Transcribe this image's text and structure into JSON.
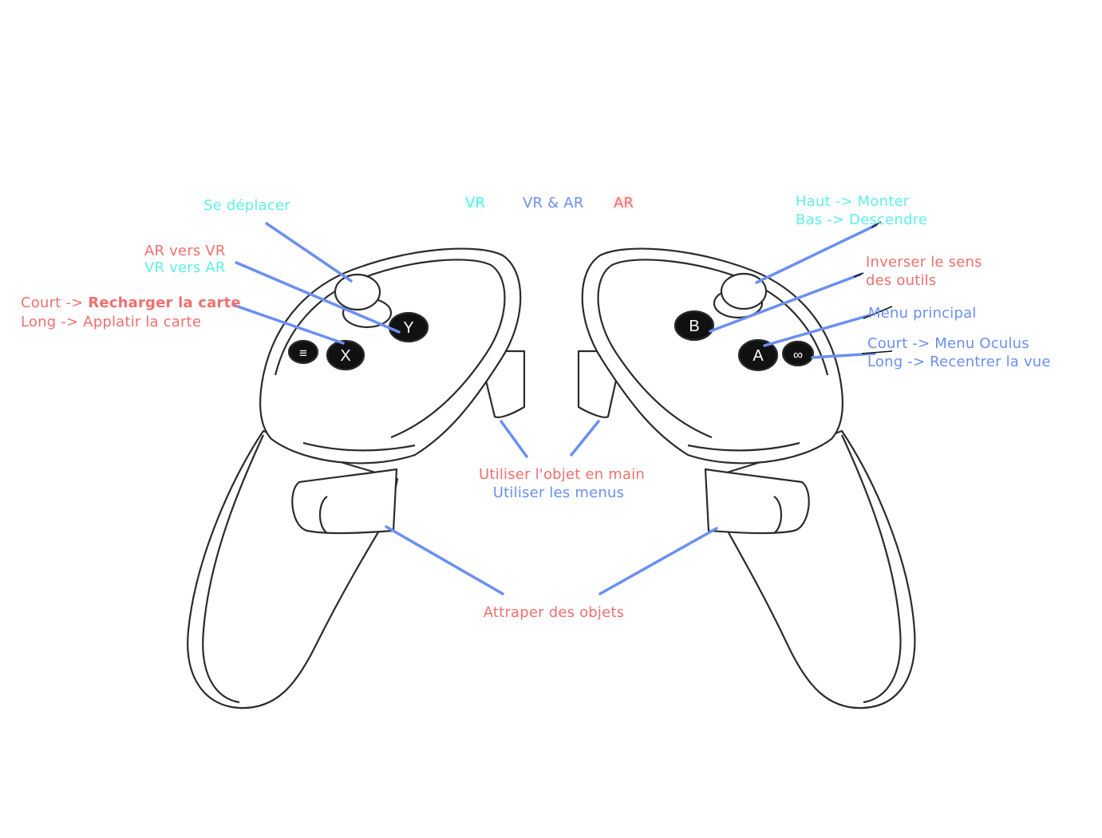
{
  "legend": {
    "vr": "VR",
    "vr_ar": "VR & AR",
    "ar": "AR",
    "colors": {
      "vr": "#5ff0e8",
      "vr_ar": "#6b8ff2",
      "ar": "#ef6f6f"
    }
  },
  "left_controller": {
    "thumbstick": "Se déplacer",
    "y_button_line1": "AR vers VR",
    "y_button_line2": "VR vers AR",
    "x_button_line1_prefix": "Court -> ",
    "x_button_line1_action": "Recharger la carte",
    "x_button_line2": "Long -> Applatir la carte",
    "x_glyph": "X",
    "y_glyph": "Y",
    "menu_glyph": "≡"
  },
  "right_controller": {
    "thumbstick_line1": "Haut -> Monter",
    "thumbstick_line2": "Bas -> Descendre",
    "b_button_line1": "Inverser le sens",
    "b_button_line2": "des outils",
    "a_button": "Menu principal",
    "oculus_line1": "Court -> Menu Oculus",
    "oculus_line2": "Long -> Recentrer la vue",
    "a_glyph": "A",
    "b_glyph": "B",
    "oculus_glyph": "∞"
  },
  "shared": {
    "trigger_line1": "Utiliser l'objet en main",
    "trigger_line2": "Utiliser les menus",
    "grip": "Attraper des objets"
  }
}
